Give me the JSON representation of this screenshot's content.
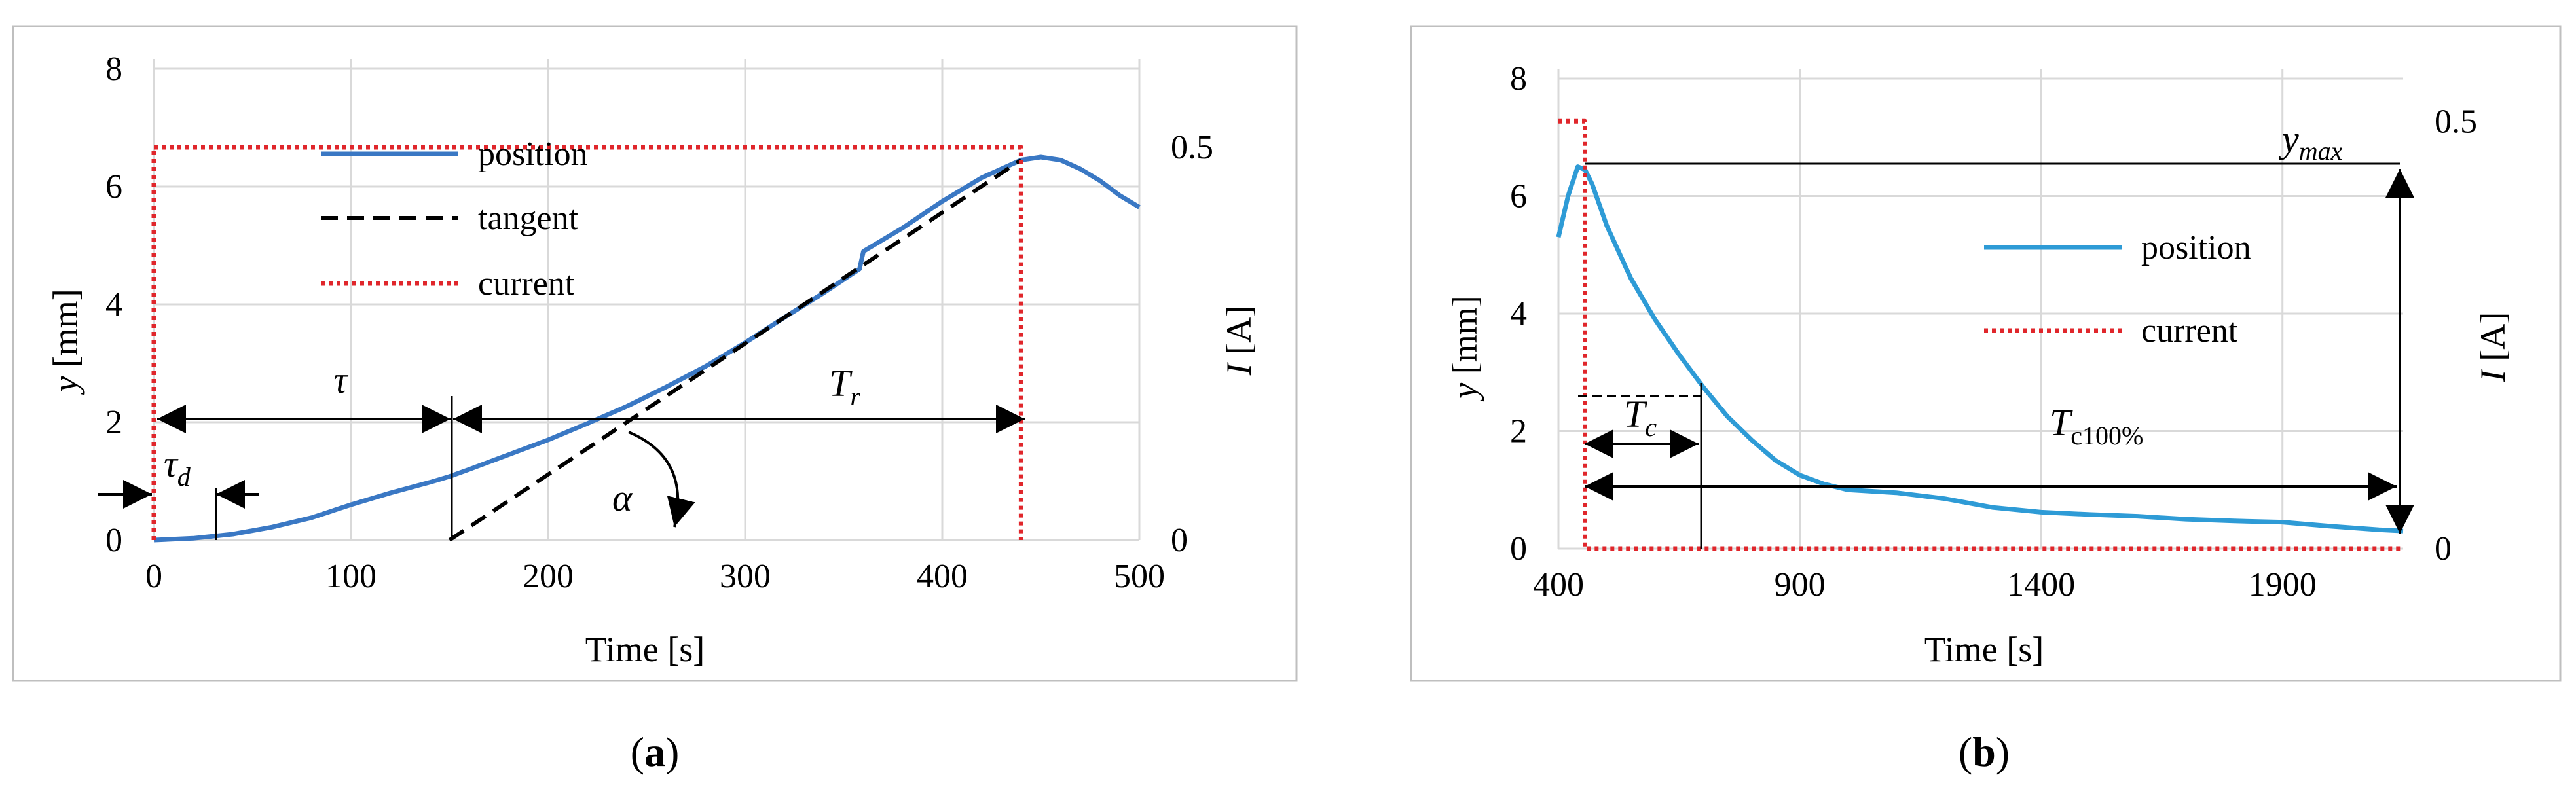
{
  "colors": {
    "position": "#3a78c4",
    "position_b": "#2e9bd6",
    "tangent": "#000000",
    "current": "#e0262b",
    "grid": "#d9d9d9",
    "border": "#bfbfbf"
  },
  "chart_data": [
    {
      "type": "line",
      "panel_label": "(a)",
      "panel_letter": "a",
      "title": "",
      "xlabel": "Time [s]",
      "ylabel": "y [mm]",
      "ylabel_var": "y",
      "ylabel_unit": " [mm]",
      "y2label": "I [A]",
      "y2label_var": "I",
      "y2label_unit": " [A]",
      "xlim": [
        0,
        500
      ],
      "ylim": [
        0,
        8
      ],
      "y2lim": [
        0,
        0.6
      ],
      "x_ticks": [
        "0",
        "100",
        "200",
        "300",
        "400",
        "500"
      ],
      "y_ticks": [
        "0",
        "2",
        "4",
        "6",
        "8"
      ],
      "y2_ticks": [
        "0",
        "0.5"
      ],
      "grid": true,
      "legend_position": "upper-center",
      "series": [
        {
          "name": "position",
          "axis": "y",
          "style": "solid",
          "x": [
            0,
            20,
            40,
            60,
            80,
            100,
            120,
            140,
            150,
            160,
            180,
            200,
            220,
            240,
            260,
            280,
            300,
            320,
            340,
            358,
            360,
            380,
            400,
            420,
            440,
            450,
            460,
            470,
            480,
            490,
            500
          ],
          "y": [
            0,
            0.03,
            0.1,
            0.22,
            0.38,
            0.6,
            0.8,
            0.98,
            1.08,
            1.2,
            1.45,
            1.7,
            1.98,
            2.27,
            2.6,
            2.95,
            3.35,
            3.78,
            4.2,
            4.6,
            4.9,
            5.3,
            5.75,
            6.15,
            6.45,
            6.5,
            6.45,
            6.3,
            6.1,
            5.85,
            5.65
          ]
        },
        {
          "name": "tangent",
          "axis": "y",
          "style": "dashed",
          "x": [
            150,
            440
          ],
          "y": [
            0,
            6.45
          ]
        },
        {
          "name": "current",
          "axis": "y2",
          "style": "dotted",
          "x": [
            0,
            0,
            440,
            440
          ],
          "y": [
            0,
            0.5,
            0.5,
            0
          ]
        }
      ],
      "annotations": {
        "tau": "τ",
        "tau_d": "τd",
        "tau_d_base": "τ",
        "tau_d_sub": "d",
        "T_r": "Tr",
        "T_r_base": "T",
        "T_r_sub": "r",
        "alpha": "α"
      }
    },
    {
      "type": "line",
      "panel_label": "(b)",
      "panel_letter": "b",
      "title": "",
      "xlabel": "Time [s]",
      "ylabel": "y [mm]",
      "ylabel_var": "y",
      "ylabel_unit": " [mm]",
      "y2label": "I [A]",
      "y2label_var": "I",
      "y2label_unit": " [A]",
      "xlim": [
        400,
        2150
      ],
      "ylim": [
        0,
        8
      ],
      "y2lim": [
        0,
        0.55
      ],
      "x_ticks": [
        "400",
        "900",
        "1400",
        "1900"
      ],
      "x_tick_values": [
        400,
        900,
        1400,
        1900
      ],
      "y_ticks": [
        "0",
        "2",
        "4",
        "6",
        "8"
      ],
      "y2_ticks": [
        "0",
        "0.5"
      ],
      "grid": true,
      "legend_position": "center-right",
      "series": [
        {
          "name": "position",
          "axis": "y",
          "style": "solid",
          "x": [
            400,
            420,
            440,
            455,
            470,
            500,
            550,
            600,
            650,
            700,
            750,
            800,
            850,
            900,
            950,
            1000,
            1100,
            1200,
            1300,
            1400,
            1500,
            1600,
            1700,
            1800,
            1900,
            2000,
            2100,
            2150
          ],
          "y": [
            5.3,
            6.0,
            6.5,
            6.45,
            6.2,
            5.5,
            4.6,
            3.9,
            3.3,
            2.75,
            2.25,
            1.85,
            1.5,
            1.25,
            1.1,
            1.0,
            0.95,
            0.85,
            0.7,
            0.62,
            0.58,
            0.55,
            0.5,
            0.47,
            0.45,
            0.38,
            0.32,
            0.3
          ]
        },
        {
          "name": "current",
          "axis": "y2",
          "style": "dotted",
          "x": [
            400,
            440,
            440,
            455,
            455,
            2150
          ],
          "y": [
            0.5,
            0.5,
            0.5,
            0.5,
            0,
            0
          ]
        }
      ],
      "annotations": {
        "y_max": "ymax",
        "y_max_base": "y",
        "y_max_sub": "max",
        "T_c": "Tc",
        "T_c_base": "T",
        "T_c_sub": "c",
        "T_c100": "Tc100%",
        "T_c100_base": "T",
        "T_c100_sub": "c100%"
      }
    }
  ]
}
